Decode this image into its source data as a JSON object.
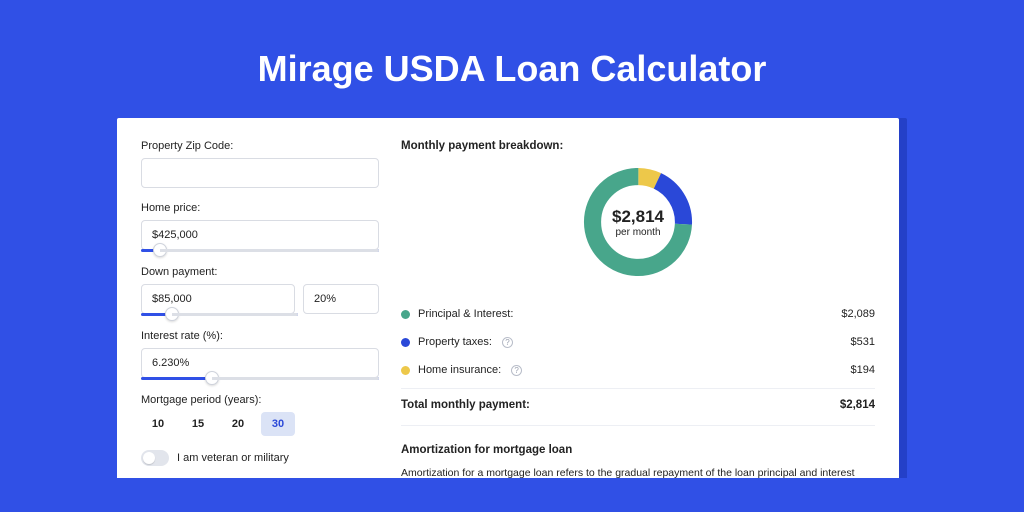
{
  "page": {
    "title": "Mirage USDA Loan Calculator",
    "background_color": "#3050e6",
    "shadow_color": "#2440c8"
  },
  "form": {
    "zip": {
      "label": "Property Zip Code:",
      "value": ""
    },
    "home_price": {
      "label": "Home price:",
      "value": "$425,000",
      "slider_pct": 8
    },
    "down_payment": {
      "label": "Down payment:",
      "value": "$85,000",
      "pct_value": "20%",
      "slider_pct": 20
    },
    "interest_rate": {
      "label": "Interest rate (%):",
      "value": "6.230%",
      "slider_pct": 30
    },
    "mortgage_period": {
      "label": "Mortgage period (years):",
      "options": [
        "10",
        "15",
        "20",
        "30"
      ],
      "active_index": 3,
      "active_bg": "#dbe3f6",
      "active_color": "#2a48d8"
    },
    "veteran": {
      "label": "I am veteran or military",
      "checked": false
    }
  },
  "breakdown": {
    "title": "Monthly payment breakdown:",
    "donut": {
      "amount": "$2,814",
      "sub": "per month",
      "segments": [
        {
          "name": "principal_interest",
          "value": 2089,
          "pct": 74.2,
          "color": "#48a68b"
        },
        {
          "name": "property_taxes",
          "value": 531,
          "pct": 18.9,
          "color": "#2a48d8"
        },
        {
          "name": "home_insurance",
          "value": 194,
          "pct": 6.9,
          "color": "#edc84a"
        }
      ],
      "ring_width": 16,
      "bg_color": "#ffffff"
    },
    "items": [
      {
        "label": "Principal & Interest:",
        "value": "$2,089",
        "color": "#48a68b",
        "info": false
      },
      {
        "label": "Property taxes:",
        "value": "$531",
        "color": "#2a48d8",
        "info": true
      },
      {
        "label": "Home insurance:",
        "value": "$194",
        "color": "#edc84a",
        "info": true
      }
    ],
    "total": {
      "label": "Total monthly payment:",
      "value": "$2,814"
    }
  },
  "amortization": {
    "title": "Amortization for mortgage loan",
    "text": "Amortization for a mortgage loan refers to the gradual repayment of the loan principal and interest over a specified"
  }
}
